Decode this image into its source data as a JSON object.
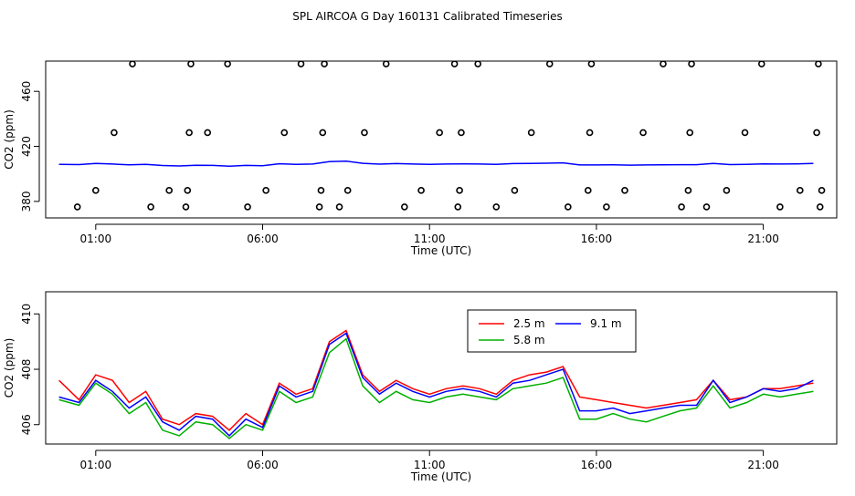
{
  "title": "SPL AIRCOA G  Day 160131  Calibrated Timeseries",
  "chart_data": [
    {
      "type": "scatter",
      "xlabel": "Time (UTC)",
      "ylabel": "CO2 (ppm)",
      "xlim": [
        23.5,
        47.2
      ],
      "ylim": [
        368,
        482
      ],
      "x_ticks": [
        25,
        30,
        35,
        40,
        45
      ],
      "x_tick_labels": [
        "01:00",
        "06:00",
        "11:00",
        "16:00",
        "21:00"
      ],
      "y_ticks": [
        380,
        420,
        460
      ],
      "y_tick_labels": [
        "380",
        "420",
        "460"
      ],
      "grid": false,
      "legend": "none",
      "points": {
        "x": [
          24.45,
          25.0,
          25.55,
          26.1,
          26.65,
          27.2,
          27.7,
          27.75,
          27.8,
          27.85,
          28.35,
          28.95,
          29.55,
          30.1,
          30.65,
          31.15,
          31.7,
          31.75,
          31.8,
          31.85,
          32.3,
          32.55,
          33.05,
          33.7,
          34.25,
          34.75,
          35.3,
          35.75,
          35.85,
          35.9,
          35.95,
          36.45,
          37.0,
          37.55,
          38.05,
          38.6,
          39.15,
          39.75,
          39.8,
          39.85,
          40.3,
          40.85,
          41.4,
          42.0,
          42.55,
          42.75,
          42.8,
          42.85,
          43.3,
          43.9,
          44.45,
          44.95,
          45.5,
          46.1,
          46.6,
          46.65,
          46.7,
          46.75
        ],
        "y": [
          376,
          388,
          430,
          480,
          376,
          388,
          376,
          388,
          430,
          480,
          430,
          480,
          376,
          388,
          430,
          480,
          376,
          388,
          430,
          480,
          376,
          388,
          430,
          480,
          376,
          388,
          430,
          480,
          376,
          388,
          430,
          480,
          376,
          388,
          430,
          480,
          376,
          388,
          430,
          480,
          376,
          388,
          430,
          480,
          376,
          388,
          430,
          480,
          376,
          388,
          430,
          480,
          376,
          388,
          430,
          480,
          376,
          388
        ]
      },
      "series": [
        {
          "name": "",
          "color": "#0000ff",
          "x": [
            23.9,
            24.5,
            25.0,
            25.5,
            26.0,
            26.5,
            27.0,
            27.5,
            28.0,
            28.5,
            29.0,
            29.5,
            30.0,
            30.5,
            31.0,
            31.5,
            32.0,
            32.5,
            33.0,
            33.5,
            34.0,
            34.5,
            35.0,
            35.5,
            36.0,
            36.5,
            37.0,
            37.5,
            38.0,
            38.5,
            39.0,
            39.5,
            40.0,
            40.5,
            41.0,
            41.5,
            42.0,
            42.5,
            43.0,
            43.5,
            44.0,
            44.5,
            45.0,
            45.5,
            46.0,
            46.5
          ],
          "values": [
            407.0,
            406.8,
            407.6,
            407.2,
            406.6,
            407.0,
            406.1,
            405.8,
            406.3,
            406.2,
            405.6,
            406.2,
            405.9,
            407.4,
            407.0,
            407.2,
            408.9,
            409.3,
            407.7,
            407.1,
            407.5,
            407.2,
            407.0,
            407.2,
            407.3,
            407.2,
            407.0,
            407.5,
            407.6,
            407.8,
            408.0,
            406.5,
            406.5,
            406.6,
            406.4,
            406.5,
            406.6,
            406.7,
            406.7,
            407.6,
            406.8,
            407.0,
            407.3,
            407.2,
            407.3,
            407.6
          ]
        }
      ]
    },
    {
      "type": "line",
      "xlabel": "Time (UTC)",
      "ylabel": "CO2 (ppm)",
      "xlim": [
        23.5,
        47.2
      ],
      "ylim": [
        405.3,
        410.8
      ],
      "x_ticks": [
        25,
        30,
        35,
        40,
        45
      ],
      "x_tick_labels": [
        "01:00",
        "06:00",
        "11:00",
        "16:00",
        "21:00"
      ],
      "y_ticks": [
        406,
        408,
        410
      ],
      "y_tick_labels": [
        "406",
        "408",
        "410"
      ],
      "grid": false,
      "legend": "top-right",
      "x": [
        23.9,
        24.5,
        25.0,
        25.5,
        26.0,
        26.5,
        27.0,
        27.5,
        28.0,
        28.5,
        29.0,
        29.5,
        30.0,
        30.5,
        31.0,
        31.5,
        32.0,
        32.5,
        33.0,
        33.5,
        34.0,
        34.5,
        35.0,
        35.5,
        36.0,
        36.5,
        37.0,
        37.5,
        38.0,
        38.5,
        39.0,
        39.5,
        40.0,
        40.5,
        41.0,
        41.5,
        42.0,
        42.5,
        43.0,
        43.5,
        44.0,
        44.5,
        45.0,
        45.5,
        46.0,
        46.5
      ],
      "series": [
        {
          "name": "2.5 m",
          "color": "#ff0000",
          "values": [
            407.6,
            406.9,
            407.8,
            407.6,
            406.8,
            407.2,
            406.2,
            406.0,
            406.4,
            406.3,
            405.8,
            406.4,
            406.0,
            407.5,
            407.1,
            407.3,
            409.0,
            409.4,
            407.8,
            407.2,
            407.6,
            407.3,
            407.1,
            407.3,
            407.4,
            407.3,
            407.1,
            407.6,
            407.8,
            407.9,
            408.1,
            407.0,
            406.9,
            406.8,
            406.7,
            406.6,
            406.7,
            406.8,
            406.9,
            407.6,
            406.9,
            407.0,
            407.3,
            407.3,
            407.4,
            407.5
          ]
        },
        {
          "name": "5.8 m",
          "color": "#00b000",
          "values": [
            406.9,
            406.7,
            407.5,
            407.1,
            406.4,
            406.8,
            405.8,
            405.6,
            406.1,
            406.0,
            405.5,
            406.0,
            405.8,
            407.2,
            406.8,
            407.0,
            408.6,
            409.1,
            407.4,
            406.8,
            407.2,
            406.9,
            406.8,
            407.0,
            407.1,
            407.0,
            406.9,
            407.3,
            407.4,
            407.5,
            407.7,
            406.2,
            406.2,
            406.4,
            406.2,
            406.1,
            406.3,
            406.5,
            406.6,
            407.4,
            406.6,
            406.8,
            407.1,
            407.0,
            407.1,
            407.2
          ]
        },
        {
          "name": "9.1 m",
          "color": "#0000ff",
          "values": [
            407.0,
            406.8,
            407.6,
            407.2,
            406.6,
            407.0,
            406.1,
            405.8,
            406.3,
            406.2,
            405.6,
            406.2,
            405.9,
            407.4,
            407.0,
            407.2,
            408.9,
            409.3,
            407.7,
            407.1,
            407.5,
            407.2,
            407.0,
            407.2,
            407.3,
            407.2,
            407.0,
            407.5,
            407.6,
            407.8,
            408.0,
            406.5,
            406.5,
            406.6,
            406.4,
            406.5,
            406.6,
            406.7,
            406.7,
            407.6,
            406.8,
            407.0,
            407.3,
            407.2,
            407.3,
            407.6
          ]
        }
      ]
    }
  ]
}
